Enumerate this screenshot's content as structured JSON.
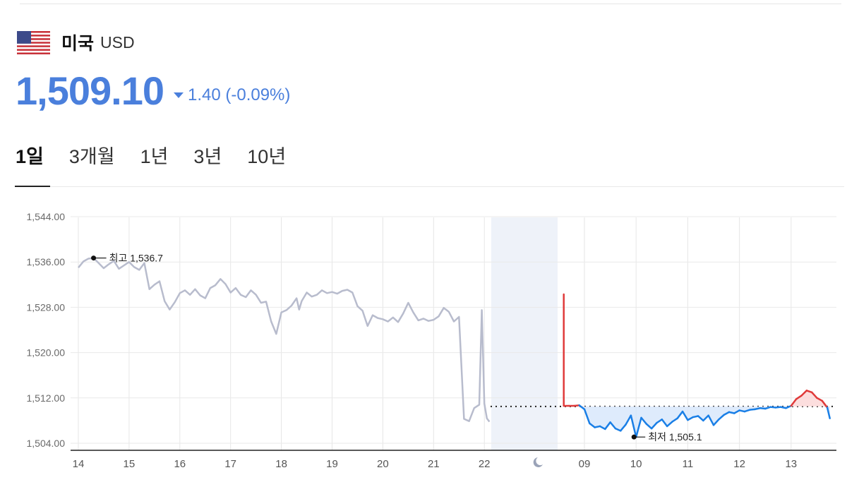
{
  "header": {
    "flag_icon": "us-flag-icon",
    "country": "미국",
    "code": "USD"
  },
  "quote": {
    "price": "1,509.10",
    "change_direction": "down",
    "change": "1.40 (-0.09%)",
    "color_down": "#4a7fdc"
  },
  "tabs": [
    {
      "label": "1일",
      "active": true
    },
    {
      "label": "3개월",
      "active": false
    },
    {
      "label": "1년",
      "active": false
    },
    {
      "label": "3년",
      "active": false
    },
    {
      "label": "10년",
      "active": false
    }
  ],
  "chart_data": {
    "type": "line",
    "yticks": [
      "1,544.00",
      "1,536.00",
      "1,528.00",
      "1,520.00",
      "1,512.00",
      "1,504.00"
    ],
    "ytick_values": [
      1544,
      1536,
      1528,
      1520,
      1512,
      1504
    ],
    "ylim": [
      1503,
      1545
    ],
    "xticks_history": [
      "14",
      "15",
      "16",
      "17",
      "18",
      "19",
      "20",
      "21",
      "22"
    ],
    "xtick_night_icon": "moon-icon",
    "xticks_today": [
      "09",
      "10",
      "11",
      "12",
      "13"
    ],
    "grid": true,
    "reference_value": 1510.5,
    "annotations": {
      "high": {
        "label": "최고 1,536.7",
        "value": 1536.7
      },
      "low": {
        "label": "최저 1,505.1",
        "value": 1505.1
      }
    },
    "series": [
      {
        "role": "previous-days",
        "color": "#b8bccd",
        "x": [
          14.0,
          14.1,
          14.2,
          14.3,
          14.4,
          14.5,
          14.6,
          14.7,
          14.8,
          14.9,
          15.0,
          15.1,
          15.2,
          15.3,
          15.4,
          15.5,
          15.6,
          15.7,
          15.8,
          15.9,
          16.0,
          16.1,
          16.2,
          16.3,
          16.4,
          16.5,
          16.6,
          16.7,
          16.8,
          16.9,
          17.0,
          17.1,
          17.2,
          17.3,
          17.4,
          17.5,
          17.6,
          17.7,
          17.8,
          17.9,
          18.0,
          18.1,
          18.2,
          18.3,
          18.35,
          18.4,
          18.5,
          18.6,
          18.7,
          18.8,
          18.9,
          19.0,
          19.1,
          19.2,
          19.3,
          19.4,
          19.5,
          19.6,
          19.7,
          19.8,
          19.9,
          20.0,
          20.1,
          20.2,
          20.3,
          20.4,
          20.5,
          20.6,
          20.7,
          20.8,
          20.9,
          21.0,
          21.1,
          21.2,
          21.3,
          21.4,
          21.5,
          21.6,
          21.7,
          21.8,
          21.9,
          21.95,
          22.0,
          22.05,
          22.1
        ],
        "y": [
          1535.0,
          1536.1,
          1536.6,
          1536.7,
          1535.8,
          1534.9,
          1535.6,
          1536.2,
          1534.8,
          1535.4,
          1536.0,
          1535.1,
          1534.6,
          1535.8,
          1531.2,
          1532.0,
          1532.6,
          1529.1,
          1527.6,
          1528.9,
          1530.5,
          1531.0,
          1530.2,
          1531.2,
          1530.1,
          1529.6,
          1531.4,
          1531.9,
          1533.0,
          1532.1,
          1530.6,
          1531.4,
          1530.2,
          1529.8,
          1531.0,
          1530.2,
          1528.8,
          1529.0,
          1525.5,
          1523.3,
          1527.1,
          1527.5,
          1528.3,
          1529.6,
          1527.6,
          1529.1,
          1530.6,
          1529.9,
          1530.2,
          1531.0,
          1530.5,
          1530.7,
          1530.4,
          1530.9,
          1531.1,
          1530.6,
          1528.2,
          1527.4,
          1524.7,
          1526.6,
          1526.1,
          1525.9,
          1525.5,
          1526.2,
          1525.4,
          1526.9,
          1528.8,
          1527.1,
          1525.7,
          1526.0,
          1525.6,
          1525.8,
          1526.4,
          1527.9,
          1527.2,
          1525.5,
          1526.3,
          1508.3,
          1507.9,
          1510.2,
          1510.8,
          1527.5,
          1511.0,
          1508.4,
          1507.8
        ]
      },
      {
        "role": "today",
        "color_above": "#e03a3a",
        "color_below": "#1a7fe6",
        "x": [
          8.6,
          8.6,
          8.7,
          8.8,
          8.9,
          9.0,
          9.1,
          9.2,
          9.3,
          9.4,
          9.5,
          9.6,
          9.7,
          9.8,
          9.9,
          10.0,
          10.1,
          10.2,
          10.3,
          10.4,
          10.5,
          10.6,
          10.7,
          10.8,
          10.9,
          11.0,
          11.1,
          11.2,
          11.3,
          11.4,
          11.5,
          11.6,
          11.7,
          11.8,
          11.9,
          12.0,
          12.1,
          12.2,
          12.3,
          12.4,
          12.5,
          12.6,
          12.7,
          12.8,
          12.9,
          13.0,
          13.1,
          13.2,
          13.3,
          13.4,
          13.5,
          13.6,
          13.7,
          13.75
        ],
        "y": [
          1530.3,
          1510.6,
          1510.6,
          1510.6,
          1510.7,
          1510.0,
          1507.5,
          1506.8,
          1507.0,
          1506.5,
          1507.7,
          1506.6,
          1506.2,
          1507.3,
          1508.9,
          1505.1,
          1508.5,
          1507.4,
          1506.6,
          1507.6,
          1508.2,
          1507.0,
          1507.8,
          1508.4,
          1509.6,
          1508.1,
          1508.6,
          1508.8,
          1508.0,
          1508.9,
          1507.2,
          1508.2,
          1509.0,
          1509.5,
          1509.3,
          1509.8,
          1509.6,
          1509.9,
          1510.0,
          1510.2,
          1510.1,
          1510.4,
          1510.3,
          1510.4,
          1510.2,
          1510.6,
          1511.8,
          1512.4,
          1513.3,
          1513.0,
          1512.0,
          1511.5,
          1510.3,
          1508.4
        ]
      }
    ]
  }
}
